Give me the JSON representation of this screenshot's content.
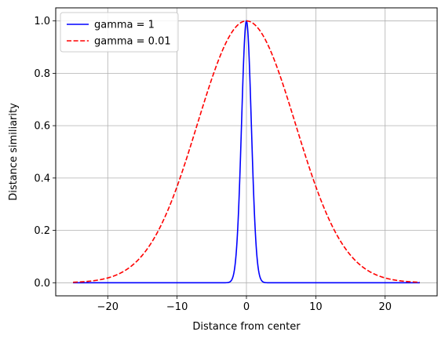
{
  "chart_data": {
    "type": "line",
    "xlabel": "Distance from center",
    "ylabel": "Distance similiarity",
    "xlim": [
      -27.5,
      27.5
    ],
    "ylim": [
      -0.05,
      1.05
    ],
    "xticks": [
      -20,
      -10,
      0,
      10,
      20
    ],
    "xtick_labels": [
      "−20",
      "−10",
      "0",
      "10",
      "20"
    ],
    "yticks": [
      0.0,
      0.2,
      0.4,
      0.6,
      0.8,
      1.0
    ],
    "ytick_labels": [
      "0.0",
      "0.2",
      "0.4",
      "0.6",
      "0.8",
      "1.0"
    ],
    "grid": true,
    "legend_position": "top-left",
    "x_range": [
      -25,
      25
    ],
    "series": [
      {
        "name": "gamma = 1",
        "gamma": 1,
        "color": "#0000ff",
        "style": "solid"
      },
      {
        "name": "gamma = 0.01",
        "gamma": 0.01,
        "color": "#ff0000",
        "style": "dashed"
      }
    ]
  }
}
